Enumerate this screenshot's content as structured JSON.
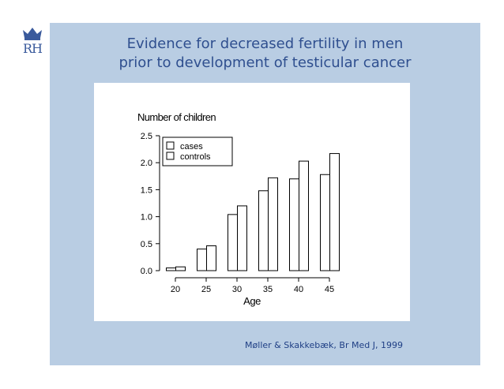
{
  "logo": {
    "text": "RH",
    "icon": "crown-icon"
  },
  "slide": {
    "title_line1": "Evidence for decreased fertility in men",
    "title_line2": "prior to development of testicular cancer",
    "citation": "Møller & Skakkebæk, Br Med J, 1999"
  },
  "colors": {
    "panel": "#b9cde3",
    "title": "#2f4f8f",
    "citation": "#1f3f85"
  },
  "chart_data": {
    "type": "bar",
    "title": "Number of children",
    "xlabel": "Age",
    "ylabel": "",
    "categories": [
      "20",
      "25",
      "30",
      "35",
      "40",
      "45"
    ],
    "series": [
      {
        "name": "cases",
        "values": [
          0.05,
          0.4,
          1.04,
          1.48,
          1.7,
          1.78
        ]
      },
      {
        "name": "controls",
        "values": [
          0.07,
          0.46,
          1.2,
          1.72,
          2.03,
          2.17
        ]
      }
    ],
    "ylim": [
      0,
      2.5
    ],
    "yticks": [
      "0.0",
      "0.5",
      "1.0",
      "1.5",
      "2.0",
      "2.5"
    ],
    "grid": false,
    "legend_position": "top-left"
  }
}
